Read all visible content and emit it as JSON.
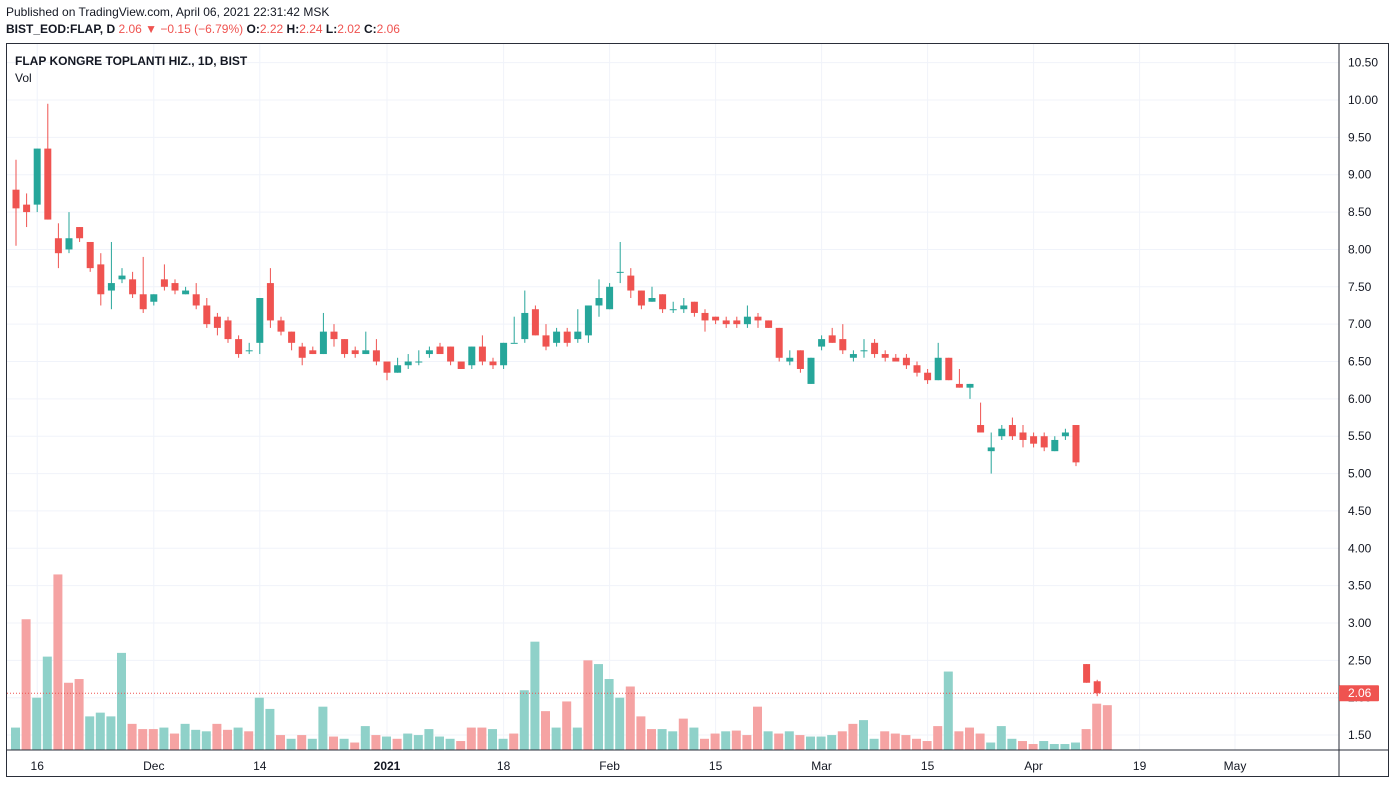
{
  "header": {
    "published": "Published on TradingView.com, April 06, 2021 22:31:42 MSK",
    "symbol": "BIST_EOD:FLAP, D",
    "last": "2.06",
    "arrow": "▼",
    "change": "−0.15 (−6.79%)",
    "open_label": "O:",
    "open": "2.22",
    "high_label": "H:",
    "high": "2.24",
    "low_label": "L:",
    "low": "2.02",
    "close_label": "C:",
    "close": "2.06"
  },
  "chart_title": "FLAP KONGRE TOPLANTI HIZ., 1D, BIST",
  "volume_label": "Vol",
  "price_tag": "2.06",
  "colors": {
    "up": "#26a69a",
    "down": "#ef5350",
    "up_vol": "#8fd1c9",
    "down_vol": "#f5a3a3",
    "grid": "#f0f3fa",
    "text": "#131722"
  },
  "chart_data": {
    "type": "candlestick",
    "y_axis_labels": [
      "10.50",
      "10.00",
      "9.50",
      "9.00",
      "8.50",
      "8.00",
      "7.50",
      "7.00",
      "6.50",
      "6.00",
      "5.50",
      "5.00",
      "4.50",
      "4.00",
      "3.50",
      "3.00",
      "2.50",
      "2.00",
      "1.50"
    ],
    "x_axis_labels": [
      "16",
      "Dec",
      "14",
      "2021",
      "18",
      "Feb",
      "15",
      "Mar",
      "15",
      "Apr",
      "19",
      "May"
    ],
    "ylim": [
      1.3,
      10.75
    ],
    "x_tick_index": [
      2,
      13,
      23,
      35,
      46,
      56,
      66,
      76,
      86,
      96,
      106,
      115
    ],
    "last_price": 2.06,
    "candles": [
      {
        "o": 8.8,
        "h": 9.2,
        "l": 8.05,
        "c": 8.55
      },
      {
        "o": 8.6,
        "h": 8.75,
        "l": 8.3,
        "c": 8.5
      },
      {
        "o": 8.6,
        "h": 9.35,
        "l": 8.5,
        "c": 9.35
      },
      {
        "o": 9.35,
        "h": 9.95,
        "l": 8.4,
        "c": 8.4
      },
      {
        "o": 8.15,
        "h": 8.35,
        "l": 7.75,
        "c": 7.95
      },
      {
        "o": 8.0,
        "h": 8.5,
        "l": 7.95,
        "c": 8.15
      },
      {
        "o": 8.3,
        "h": 8.3,
        "l": 8.1,
        "c": 8.15
      },
      {
        "o": 8.1,
        "h": 8.1,
        "l": 7.7,
        "c": 7.75
      },
      {
        "o": 7.8,
        "h": 7.95,
        "l": 7.25,
        "c": 7.4
      },
      {
        "o": 7.45,
        "h": 8.1,
        "l": 7.2,
        "c": 7.55
      },
      {
        "o": 7.6,
        "h": 7.75,
        "l": 7.55,
        "c": 7.65
      },
      {
        "o": 7.6,
        "h": 7.7,
        "l": 7.35,
        "c": 7.4
      },
      {
        "o": 7.4,
        "h": 7.9,
        "l": 7.15,
        "c": 7.2
      },
      {
        "o": 7.3,
        "h": 7.4,
        "l": 7.25,
        "c": 7.4
      },
      {
        "o": 7.6,
        "h": 7.8,
        "l": 7.45,
        "c": 7.5
      },
      {
        "o": 7.55,
        "h": 7.6,
        "l": 7.4,
        "c": 7.45
      },
      {
        "o": 7.4,
        "h": 7.5,
        "l": 7.4,
        "c": 7.45
      },
      {
        "o": 7.4,
        "h": 7.55,
        "l": 7.2,
        "c": 7.25
      },
      {
        "o": 7.25,
        "h": 7.35,
        "l": 6.95,
        "c": 7.0
      },
      {
        "o": 7.1,
        "h": 7.15,
        "l": 6.85,
        "c": 6.95
      },
      {
        "o": 7.05,
        "h": 7.1,
        "l": 6.75,
        "c": 6.8
      },
      {
        "o": 6.8,
        "h": 6.85,
        "l": 6.55,
        "c": 6.6
      },
      {
        "o": 6.65,
        "h": 6.75,
        "l": 6.6,
        "c": 6.65
      },
      {
        "o": 6.75,
        "h": 7.35,
        "l": 6.6,
        "c": 7.35
      },
      {
        "o": 7.55,
        "h": 7.75,
        "l": 6.95,
        "c": 7.05
      },
      {
        "o": 7.05,
        "h": 7.1,
        "l": 6.85,
        "c": 6.9
      },
      {
        "o": 6.9,
        "h": 6.9,
        "l": 6.65,
        "c": 6.75
      },
      {
        "o": 6.7,
        "h": 6.75,
        "l": 6.45,
        "c": 6.55
      },
      {
        "o": 6.65,
        "h": 6.7,
        "l": 6.6,
        "c": 6.6
      },
      {
        "o": 6.6,
        "h": 7.15,
        "l": 6.6,
        "c": 6.9
      },
      {
        "o": 6.9,
        "h": 7.0,
        "l": 6.7,
        "c": 6.8
      },
      {
        "o": 6.8,
        "h": 6.8,
        "l": 6.55,
        "c": 6.6
      },
      {
        "o": 6.65,
        "h": 6.7,
        "l": 6.55,
        "c": 6.6
      },
      {
        "o": 6.6,
        "h": 6.9,
        "l": 6.6,
        "c": 6.65
      },
      {
        "o": 6.65,
        "h": 6.8,
        "l": 6.45,
        "c": 6.5
      },
      {
        "o": 6.5,
        "h": 6.5,
        "l": 6.25,
        "c": 6.35
      },
      {
        "o": 6.35,
        "h": 6.55,
        "l": 6.35,
        "c": 6.45
      },
      {
        "o": 6.45,
        "h": 6.6,
        "l": 6.4,
        "c": 6.5
      },
      {
        "o": 6.5,
        "h": 6.65,
        "l": 6.45,
        "c": 6.5
      },
      {
        "o": 6.6,
        "h": 6.7,
        "l": 6.55,
        "c": 6.65
      },
      {
        "o": 6.7,
        "h": 6.75,
        "l": 6.6,
        "c": 6.6
      },
      {
        "o": 6.7,
        "h": 6.7,
        "l": 6.45,
        "c": 6.5
      },
      {
        "o": 6.5,
        "h": 6.5,
        "l": 6.4,
        "c": 6.4
      },
      {
        "o": 6.45,
        "h": 6.7,
        "l": 6.4,
        "c": 6.7
      },
      {
        "o": 6.7,
        "h": 6.85,
        "l": 6.45,
        "c": 6.5
      },
      {
        "o": 6.5,
        "h": 6.55,
        "l": 6.4,
        "c": 6.45
      },
      {
        "o": 6.45,
        "h": 6.75,
        "l": 6.4,
        "c": 6.75
      },
      {
        "o": 6.75,
        "h": 7.1,
        "l": 6.75,
        "c": 6.75
      },
      {
        "o": 6.8,
        "h": 7.45,
        "l": 6.75,
        "c": 7.15
      },
      {
        "o": 7.2,
        "h": 7.25,
        "l": 6.85,
        "c": 6.85
      },
      {
        "o": 6.85,
        "h": 7.0,
        "l": 6.65,
        "c": 6.7
      },
      {
        "o": 6.75,
        "h": 6.95,
        "l": 6.7,
        "c": 6.9
      },
      {
        "o": 6.9,
        "h": 6.95,
        "l": 6.7,
        "c": 6.75
      },
      {
        "o": 6.8,
        "h": 7.2,
        "l": 6.75,
        "c": 6.9
      },
      {
        "o": 6.85,
        "h": 7.25,
        "l": 6.75,
        "c": 7.25
      },
      {
        "o": 7.25,
        "h": 7.6,
        "l": 7.1,
        "c": 7.35
      },
      {
        "o": 7.2,
        "h": 7.55,
        "l": 7.2,
        "c": 7.5
      },
      {
        "o": 7.7,
        "h": 8.1,
        "l": 7.55,
        "c": 7.7
      },
      {
        "o": 7.65,
        "h": 7.75,
        "l": 7.35,
        "c": 7.45
      },
      {
        "o": 7.45,
        "h": 7.45,
        "l": 7.2,
        "c": 7.25
      },
      {
        "o": 7.3,
        "h": 7.5,
        "l": 7.3,
        "c": 7.35
      },
      {
        "o": 7.4,
        "h": 7.4,
        "l": 7.15,
        "c": 7.2
      },
      {
        "o": 7.2,
        "h": 7.3,
        "l": 7.15,
        "c": 7.2
      },
      {
        "o": 7.2,
        "h": 7.35,
        "l": 7.15,
        "c": 7.25
      },
      {
        "o": 7.3,
        "h": 7.3,
        "l": 7.1,
        "c": 7.15
      },
      {
        "o": 7.15,
        "h": 7.2,
        "l": 6.9,
        "c": 7.05
      },
      {
        "o": 7.1,
        "h": 7.1,
        "l": 7.0,
        "c": 7.05
      },
      {
        "o": 7.05,
        "h": 7.1,
        "l": 6.95,
        "c": 7.0
      },
      {
        "o": 7.05,
        "h": 7.1,
        "l": 6.95,
        "c": 7.0
      },
      {
        "o": 7.0,
        "h": 7.25,
        "l": 6.95,
        "c": 7.1
      },
      {
        "o": 7.1,
        "h": 7.15,
        "l": 6.95,
        "c": 7.05
      },
      {
        "o": 7.05,
        "h": 7.05,
        "l": 6.95,
        "c": 6.95
      },
      {
        "o": 6.95,
        "h": 6.95,
        "l": 6.5,
        "c": 6.55
      },
      {
        "o": 6.5,
        "h": 6.65,
        "l": 6.45,
        "c": 6.55
      },
      {
        "o": 6.65,
        "h": 6.65,
        "l": 6.35,
        "c": 6.4
      },
      {
        "o": 6.2,
        "h": 6.55,
        "l": 6.2,
        "c": 6.55
      },
      {
        "o": 6.7,
        "h": 6.85,
        "l": 6.65,
        "c": 6.8
      },
      {
        "o": 6.85,
        "h": 6.95,
        "l": 6.75,
        "c": 6.75
      },
      {
        "o": 6.8,
        "h": 7.0,
        "l": 6.6,
        "c": 6.65
      },
      {
        "o": 6.55,
        "h": 6.65,
        "l": 6.5,
        "c": 6.6
      },
      {
        "o": 6.65,
        "h": 6.8,
        "l": 6.55,
        "c": 6.65
      },
      {
        "o": 6.75,
        "h": 6.8,
        "l": 6.55,
        "c": 6.6
      },
      {
        "o": 6.6,
        "h": 6.65,
        "l": 6.5,
        "c": 6.55
      },
      {
        "o": 6.55,
        "h": 6.6,
        "l": 6.5,
        "c": 6.5
      },
      {
        "o": 6.55,
        "h": 6.6,
        "l": 6.4,
        "c": 6.45
      },
      {
        "o": 6.45,
        "h": 6.5,
        "l": 6.3,
        "c": 6.35
      },
      {
        "o": 6.35,
        "h": 6.4,
        "l": 6.2,
        "c": 6.25
      },
      {
        "o": 6.25,
        "h": 6.75,
        "l": 6.25,
        "c": 6.55
      },
      {
        "o": 6.55,
        "h": 6.55,
        "l": 6.25,
        "c": 6.25
      },
      {
        "o": 6.2,
        "h": 6.4,
        "l": 6.15,
        "c": 6.15
      },
      {
        "o": 6.15,
        "h": 6.2,
        "l": 6.0,
        "c": 6.2
      },
      {
        "o": 5.65,
        "h": 5.95,
        "l": 5.55,
        "c": 5.55
      },
      {
        "o": 5.3,
        "h": 5.55,
        "l": 5.0,
        "c": 5.35
      },
      {
        "o": 5.5,
        "h": 5.65,
        "l": 5.45,
        "c": 5.6
      },
      {
        "o": 5.65,
        "h": 5.75,
        "l": 5.45,
        "c": 5.5
      },
      {
        "o": 5.55,
        "h": 5.65,
        "l": 5.35,
        "c": 5.45
      },
      {
        "o": 5.5,
        "h": 5.55,
        "l": 5.35,
        "c": 5.4
      },
      {
        "o": 5.5,
        "h": 5.55,
        "l": 5.3,
        "c": 5.35
      },
      {
        "o": 5.3,
        "h": 5.5,
        "l": 5.3,
        "c": 5.45
      },
      {
        "o": 5.5,
        "h": 5.6,
        "l": 5.45,
        "c": 5.55
      },
      {
        "o": 5.65,
        "h": 5.65,
        "l": 5.1,
        "c": 5.15
      },
      {
        "o": 2.45,
        "h": 2.45,
        "l": 2.2,
        "c": 2.2
      },
      {
        "o": 2.22,
        "h": 2.24,
        "l": 2.02,
        "c": 2.06
      }
    ],
    "volumes": [
      1.6,
      3.05,
      2.0,
      2.55,
      3.65,
      2.2,
      2.25,
      1.75,
      1.8,
      1.75,
      2.6,
      1.65,
      1.58,
      1.58,
      1.6,
      1.52,
      1.65,
      1.57,
      1.55,
      1.65,
      1.57,
      1.6,
      1.55,
      2.0,
      1.85,
      1.5,
      1.45,
      1.5,
      1.45,
      1.88,
      1.48,
      1.45,
      1.4,
      1.62,
      1.5,
      1.48,
      1.45,
      1.52,
      1.5,
      1.58,
      1.48,
      1.45,
      1.42,
      1.6,
      1.6,
      1.58,
      1.45,
      1.52,
      2.1,
      2.75,
      1.82,
      1.6,
      1.95,
      1.6,
      2.5,
      2.45,
      2.25,
      2.0,
      2.15,
      1.75,
      1.58,
      1.58,
      1.55,
      1.72,
      1.6,
      1.45,
      1.52,
      1.55,
      1.56,
      1.5,
      1.88,
      1.55,
      1.52,
      1.55,
      1.5,
      1.48,
      1.48,
      1.5,
      1.55,
      1.65,
      1.7,
      1.45,
      1.55,
      1.52,
      1.5,
      1.45,
      1.42,
      1.62,
      2.35,
      1.55,
      1.6,
      1.52,
      1.4,
      1.62,
      1.45,
      1.42,
      1.38,
      1.42,
      1.38,
      1.38,
      1.4,
      1.58,
      1.92,
      1.9
    ],
    "up_vol_index": [
      0,
      2,
      3,
      7,
      8,
      9,
      10,
      14,
      16,
      17,
      18,
      21,
      23,
      24,
      26,
      28,
      29,
      31,
      33,
      35,
      37,
      38,
      39,
      40,
      41,
      45,
      46,
      48,
      49,
      51,
      53,
      55,
      56,
      57,
      61,
      62,
      64,
      67,
      71,
      73,
      75,
      76,
      77,
      80,
      81,
      88,
      92,
      93,
      94,
      97,
      98,
      99,
      100
    ]
  }
}
